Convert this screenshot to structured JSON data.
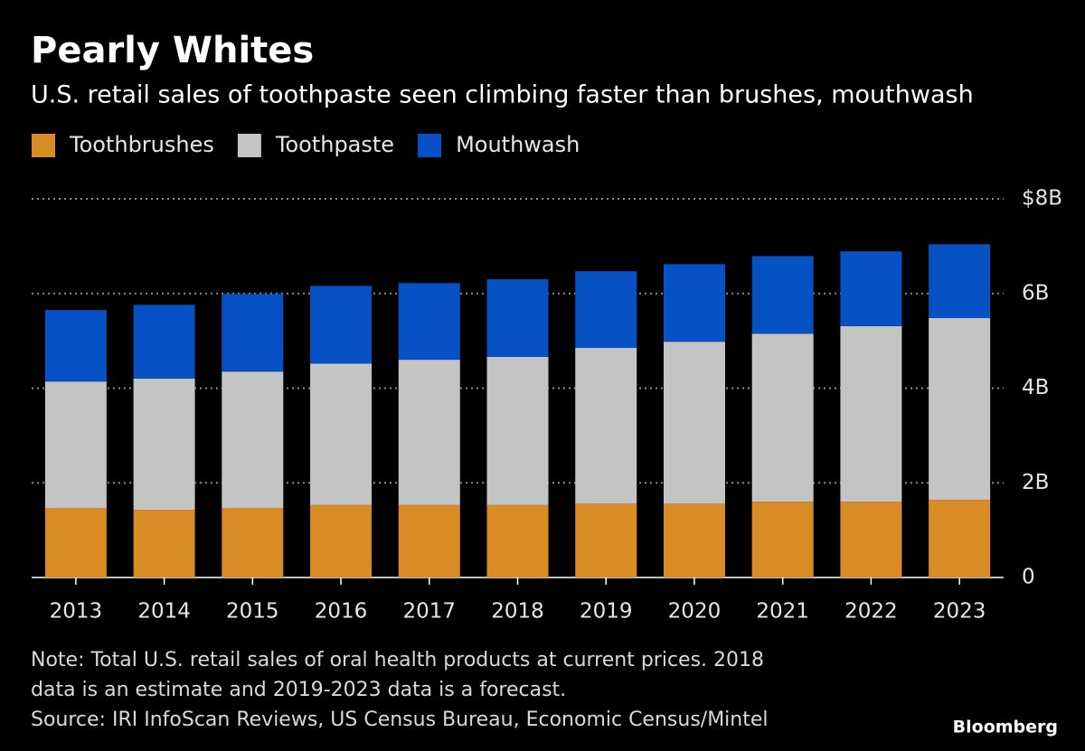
{
  "chart_data": {
    "type": "stacked-bar",
    "title": "Pearly Whites",
    "subtitle": "U.S. retail sales of toothpaste seen climbing faster than brushes, mouthwash",
    "categories": [
      "2013",
      "2014",
      "2015",
      "2016",
      "2017",
      "2018",
      "2019",
      "2020",
      "2021",
      "2022",
      "2023"
    ],
    "series": [
      {
        "name": "Toothbrushes",
        "color": "#d98b26",
        "values": [
          1.47,
          1.43,
          1.47,
          1.53,
          1.53,
          1.53,
          1.56,
          1.56,
          1.6,
          1.6,
          1.64
        ]
      },
      {
        "name": "Toothpaste",
        "color": "#c4c4c4",
        "values": [
          2.67,
          2.77,
          2.88,
          2.99,
          3.07,
          3.13,
          3.29,
          3.42,
          3.55,
          3.71,
          3.84
        ]
      },
      {
        "name": "Mouthwash",
        "color": "#0652c5",
        "values": [
          1.51,
          1.56,
          1.64,
          1.64,
          1.62,
          1.64,
          1.62,
          1.64,
          1.64,
          1.58,
          1.56
        ]
      }
    ],
    "ylim": [
      0,
      8
    ],
    "yticks": [
      0,
      {
        "value": 2,
        "label": "2B"
      },
      {
        "value": 4,
        "label": "4B"
      },
      {
        "value": 6,
        "label": "6B"
      },
      {
        "value": 8,
        "label": "$8B"
      }
    ],
    "grid": true,
    "note": [
      "Note: Total U.S. retail sales of oral health products at current prices. 2018",
      "data is an estimate and 2019-2023 data is a forecast."
    ],
    "source": "Source: IRI InfoScan Reviews, US Census Bureau, Economic Census/Mintel",
    "brand": "Bloomberg"
  }
}
